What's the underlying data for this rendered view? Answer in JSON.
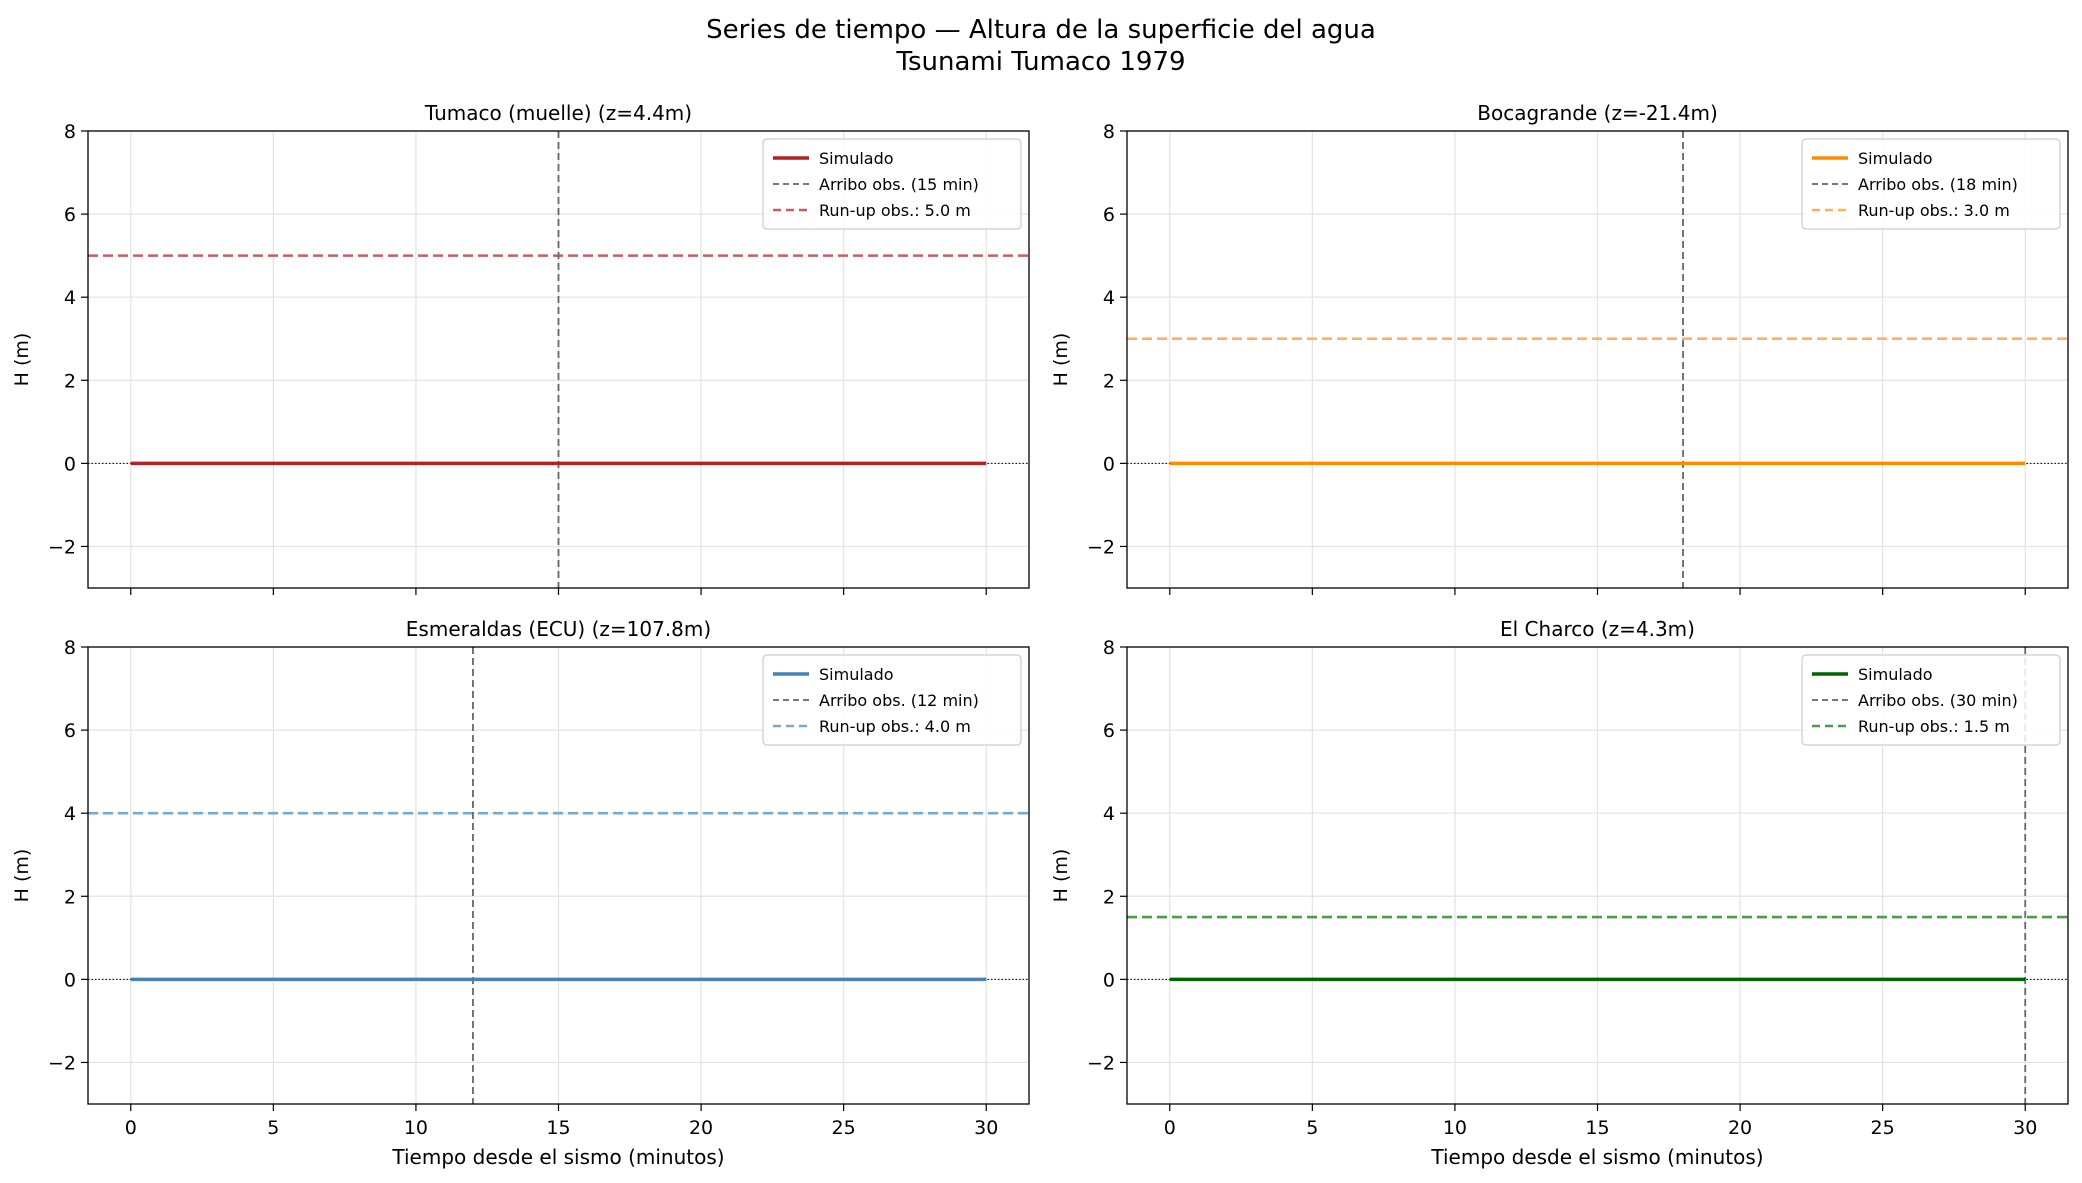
{
  "figure": {
    "title_line1": "Series de tiempo — Altura de la superficie del agua",
    "title_line2": "Tsunami Tumaco 1979"
  },
  "chart_data": [
    {
      "type": "line",
      "title": "Tumaco (muelle) (z=4.4m)",
      "xlabel": "",
      "ylabel": "H (m)",
      "xlim": [
        -1.5,
        31.5
      ],
      "ylim": [
        -3,
        8
      ],
      "xticks": [
        0,
        5,
        10,
        15,
        20,
        25,
        30
      ],
      "yticks": [
        -2,
        0,
        2,
        4,
        6,
        8
      ],
      "xticks_labeled": false,
      "grid": true,
      "legend_position": "top-right",
      "series": [
        {
          "name": "Simulado",
          "color": "#b22222",
          "x": [
            0,
            30
          ],
          "y": [
            0,
            0
          ]
        }
      ],
      "arrival": {
        "label": "Arribo obs. (15 min)",
        "x": 15,
        "color": "#666666"
      },
      "runup": {
        "label": "Run-up obs.: 5.0 m",
        "y": 5.0,
        "color": "#cd5c5c"
      }
    },
    {
      "type": "line",
      "title": "Bocagrande (z=-21.4m)",
      "xlabel": "",
      "ylabel": "H (m)",
      "xlim": [
        -1.5,
        31.5
      ],
      "ylim": [
        -3,
        8
      ],
      "xticks": [
        0,
        5,
        10,
        15,
        20,
        25,
        30
      ],
      "yticks": [
        -2,
        0,
        2,
        4,
        6,
        8
      ],
      "xticks_labeled": false,
      "grid": true,
      "legend_position": "top-right",
      "series": [
        {
          "name": "Simulado",
          "color": "#ff8c00",
          "x": [
            0,
            30
          ],
          "y": [
            0,
            0
          ]
        }
      ],
      "arrival": {
        "label": "Arribo obs. (18 min)",
        "x": 18,
        "color": "#666666"
      },
      "runup": {
        "label": "Run-up obs.: 3.0 m",
        "y": 3.0,
        "color": "#ffb25a"
      }
    },
    {
      "type": "line",
      "title": "Esmeraldas (ECU) (z=107.8m)",
      "xlabel": "Tiempo desde el sismo (minutos)",
      "ylabel": "H (m)",
      "xlim": [
        -1.5,
        31.5
      ],
      "ylim": [
        -3,
        8
      ],
      "xticks": [
        0,
        5,
        10,
        15,
        20,
        25,
        30
      ],
      "yticks": [
        -2,
        0,
        2,
        4,
        6,
        8
      ],
      "xticks_labeled": true,
      "grid": true,
      "legend_position": "top-right",
      "series": [
        {
          "name": "Simulado",
          "color": "#4682b4",
          "x": [
            0,
            30
          ],
          "y": [
            0,
            0
          ]
        }
      ],
      "arrival": {
        "label": "Arribo obs. (12 min)",
        "x": 12,
        "color": "#666666"
      },
      "runup": {
        "label": "Run-up obs.: 4.0 m",
        "y": 4.0,
        "color": "#7aa9cf"
      }
    },
    {
      "type": "line",
      "title": "El Charco (z=4.3m)",
      "xlabel": "Tiempo desde el sismo (minutos)",
      "ylabel": "H (m)",
      "xlim": [
        -1.5,
        31.5
      ],
      "ylim": [
        -3,
        8
      ],
      "xticks": [
        0,
        5,
        10,
        15,
        20,
        25,
        30
      ],
      "yticks": [
        -2,
        0,
        2,
        4,
        6,
        8
      ],
      "xticks_labeled": true,
      "grid": true,
      "legend_position": "top-right",
      "series": [
        {
          "name": "Simulado",
          "color": "#006400",
          "x": [
            0,
            30
          ],
          "y": [
            0,
            0
          ]
        }
      ],
      "arrival": {
        "label": "Arribo obs. (30 min)",
        "x": 30,
        "color": "#666666"
      },
      "runup": {
        "label": "Run-up obs.: 1.5 m",
        "y": 1.5,
        "color": "#4c9a4c"
      }
    }
  ]
}
